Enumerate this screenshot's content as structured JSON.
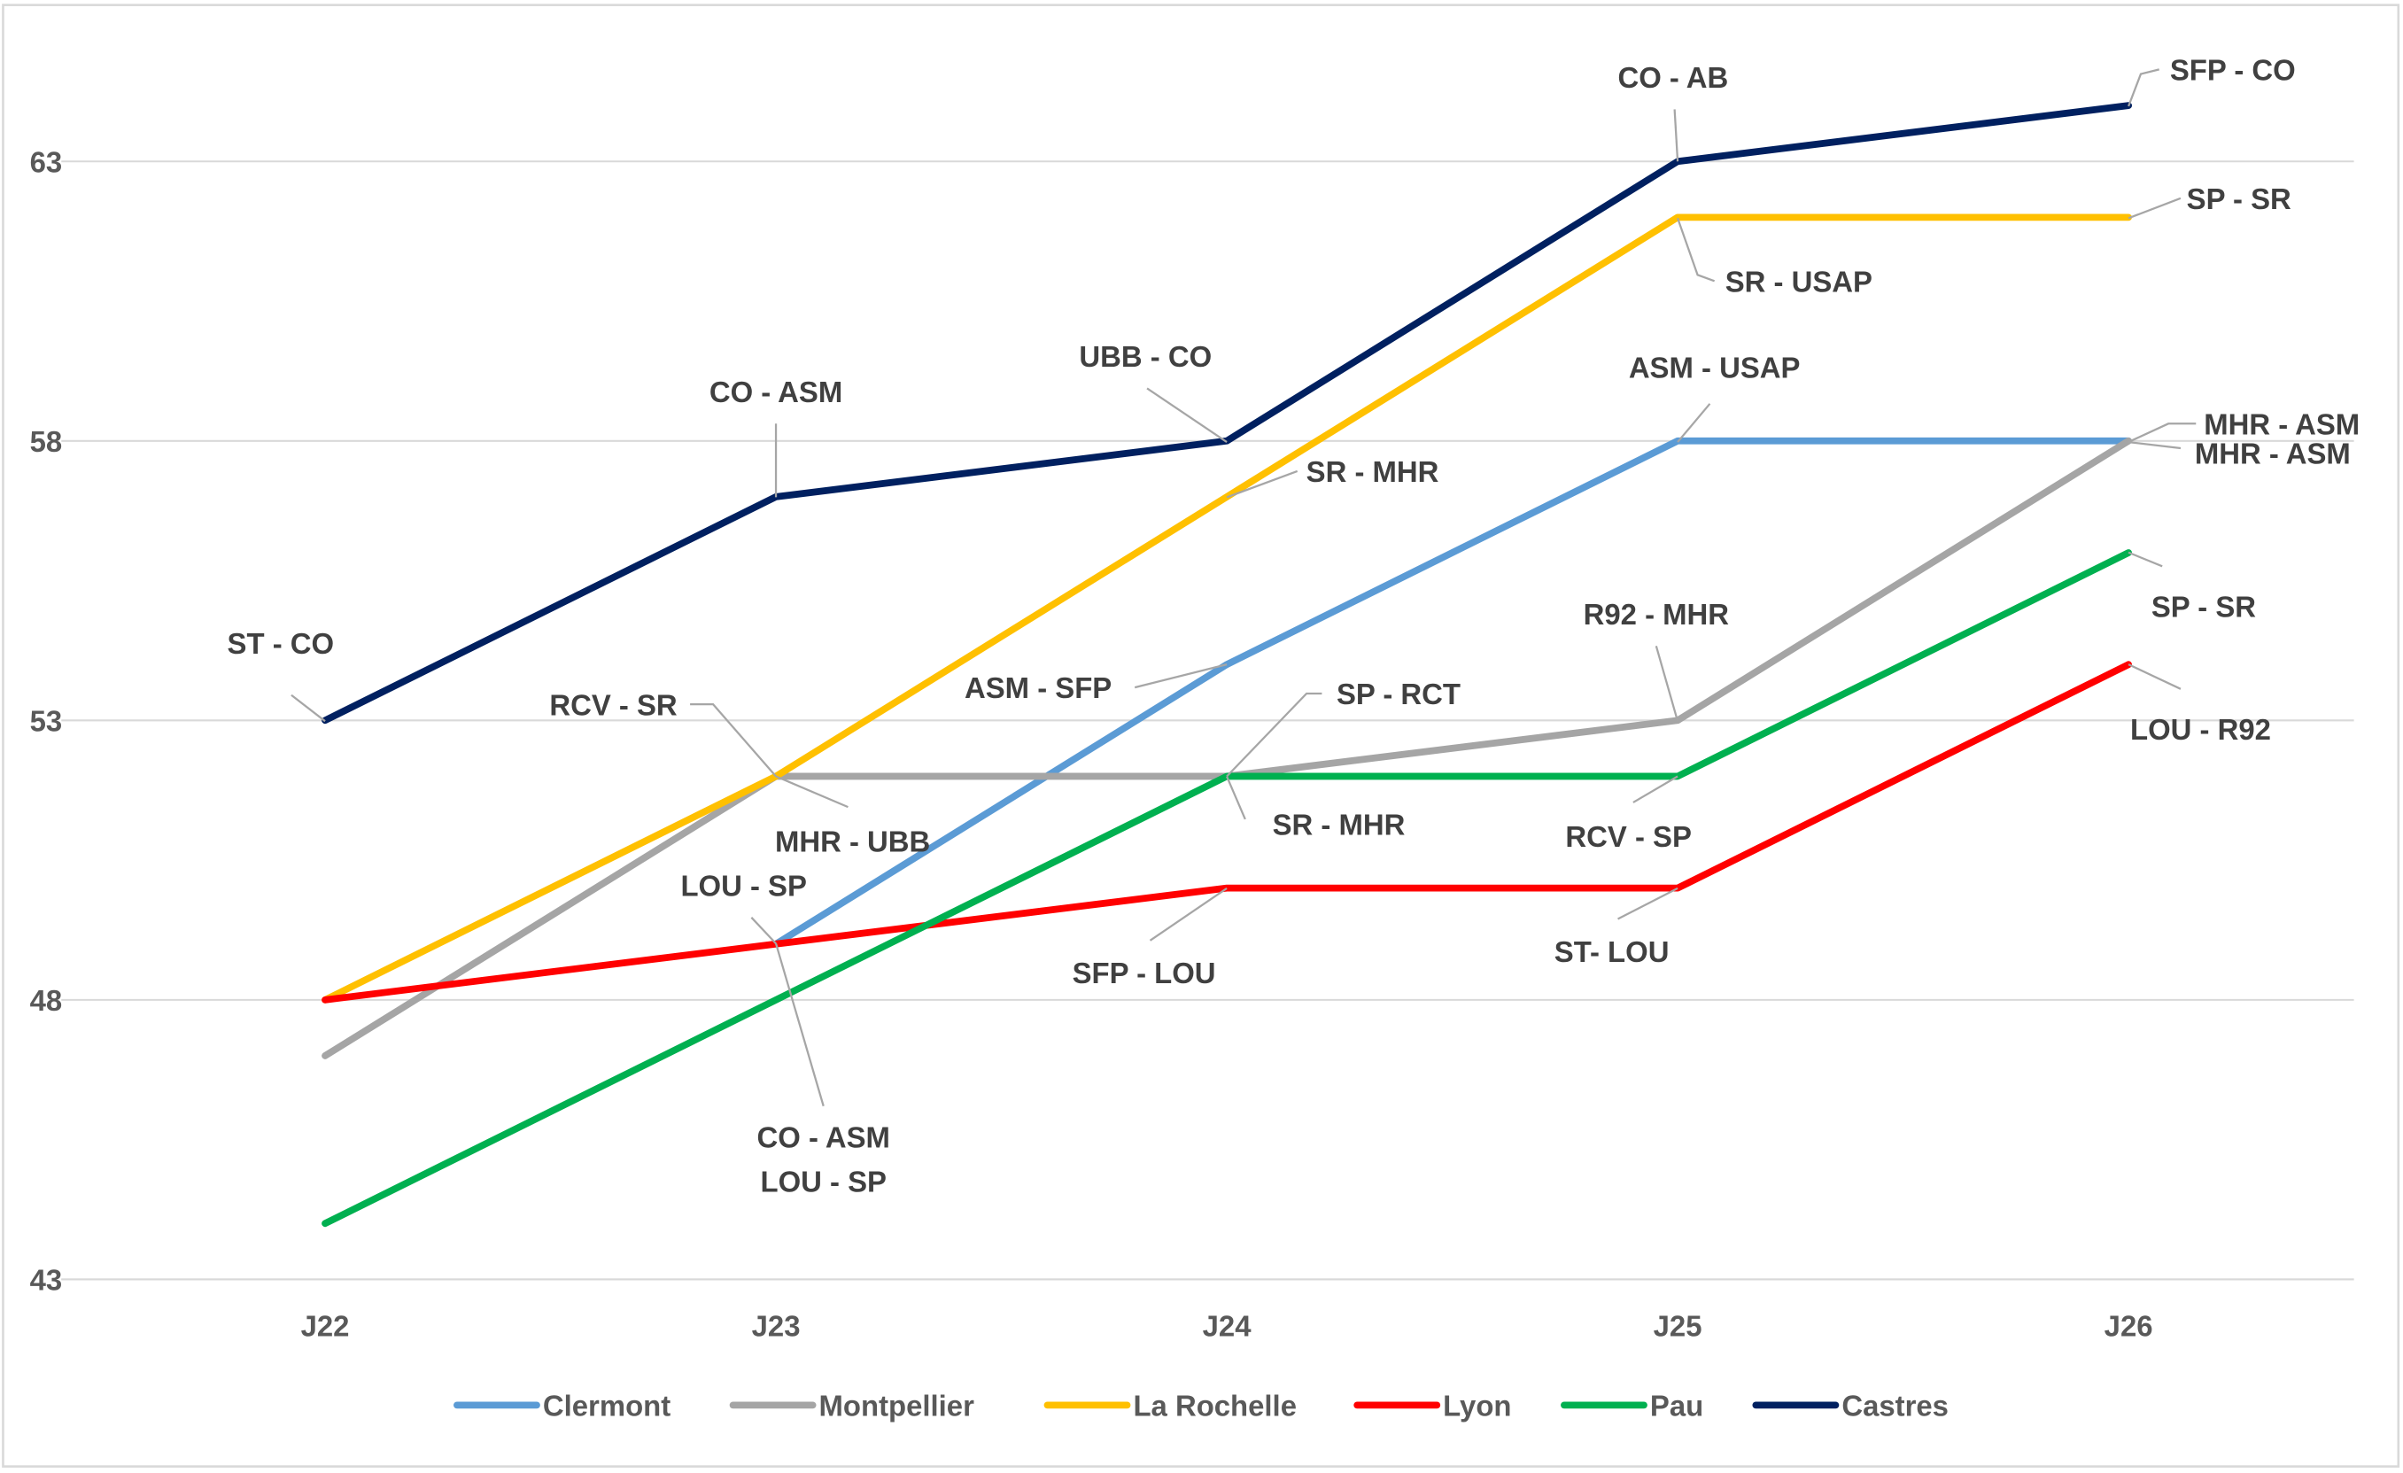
{
  "chart_data": {
    "type": "line",
    "title": "",
    "xlabel": "",
    "ylabel": "",
    "categories": [
      "J22",
      "J23",
      "J24",
      "J25",
      "J26"
    ],
    "ylim": [
      43,
      65
    ],
    "yticks": [
      43,
      48,
      53,
      58,
      63
    ],
    "grid": true,
    "legend_position": "bottom",
    "series": [
      {
        "name": "Clermont",
        "color": "#5B9BD5",
        "values": [
          null,
          49,
          54,
          58,
          58
        ]
      },
      {
        "name": "Montpellier",
        "color": "#A5A5A5",
        "values": [
          47,
          52,
          52,
          53,
          58
        ]
      },
      {
        "name": "La Rochelle",
        "color": "#FFC000",
        "values": [
          48,
          52,
          57,
          62,
          62
        ]
      },
      {
        "name": "Lyon",
        "color": "#FF0000",
        "values": [
          48,
          49,
          50,
          50,
          54
        ]
      },
      {
        "name": "Pau",
        "color": "#00B050",
        "values": [
          44,
          48,
          52,
          52,
          56
        ]
      },
      {
        "name": "Castres",
        "color": "#002060",
        "values": [
          53,
          57,
          58,
          63,
          64
        ]
      }
    ],
    "annotations": [
      "ST - CO",
      "CO - ASM",
      "UBB - CO",
      "CO - AB",
      "SFP - CO",
      "SP - SR",
      "SR - USAP",
      "SR - MHR",
      "ASM - USAP",
      "MHR - ASM",
      "MHR - ASM",
      "R92 - MHR",
      "SP - SR",
      "LOU - R92",
      "RCV - SR",
      "MHR - UBB",
      "ASM - SFP",
      "SP - RCT",
      "SR - MHR",
      "RCV - SP",
      "LOU - SP",
      "SFP - LOU",
      "ST- LOU",
      "CO - ASM",
      "LOU - SP"
    ]
  }
}
